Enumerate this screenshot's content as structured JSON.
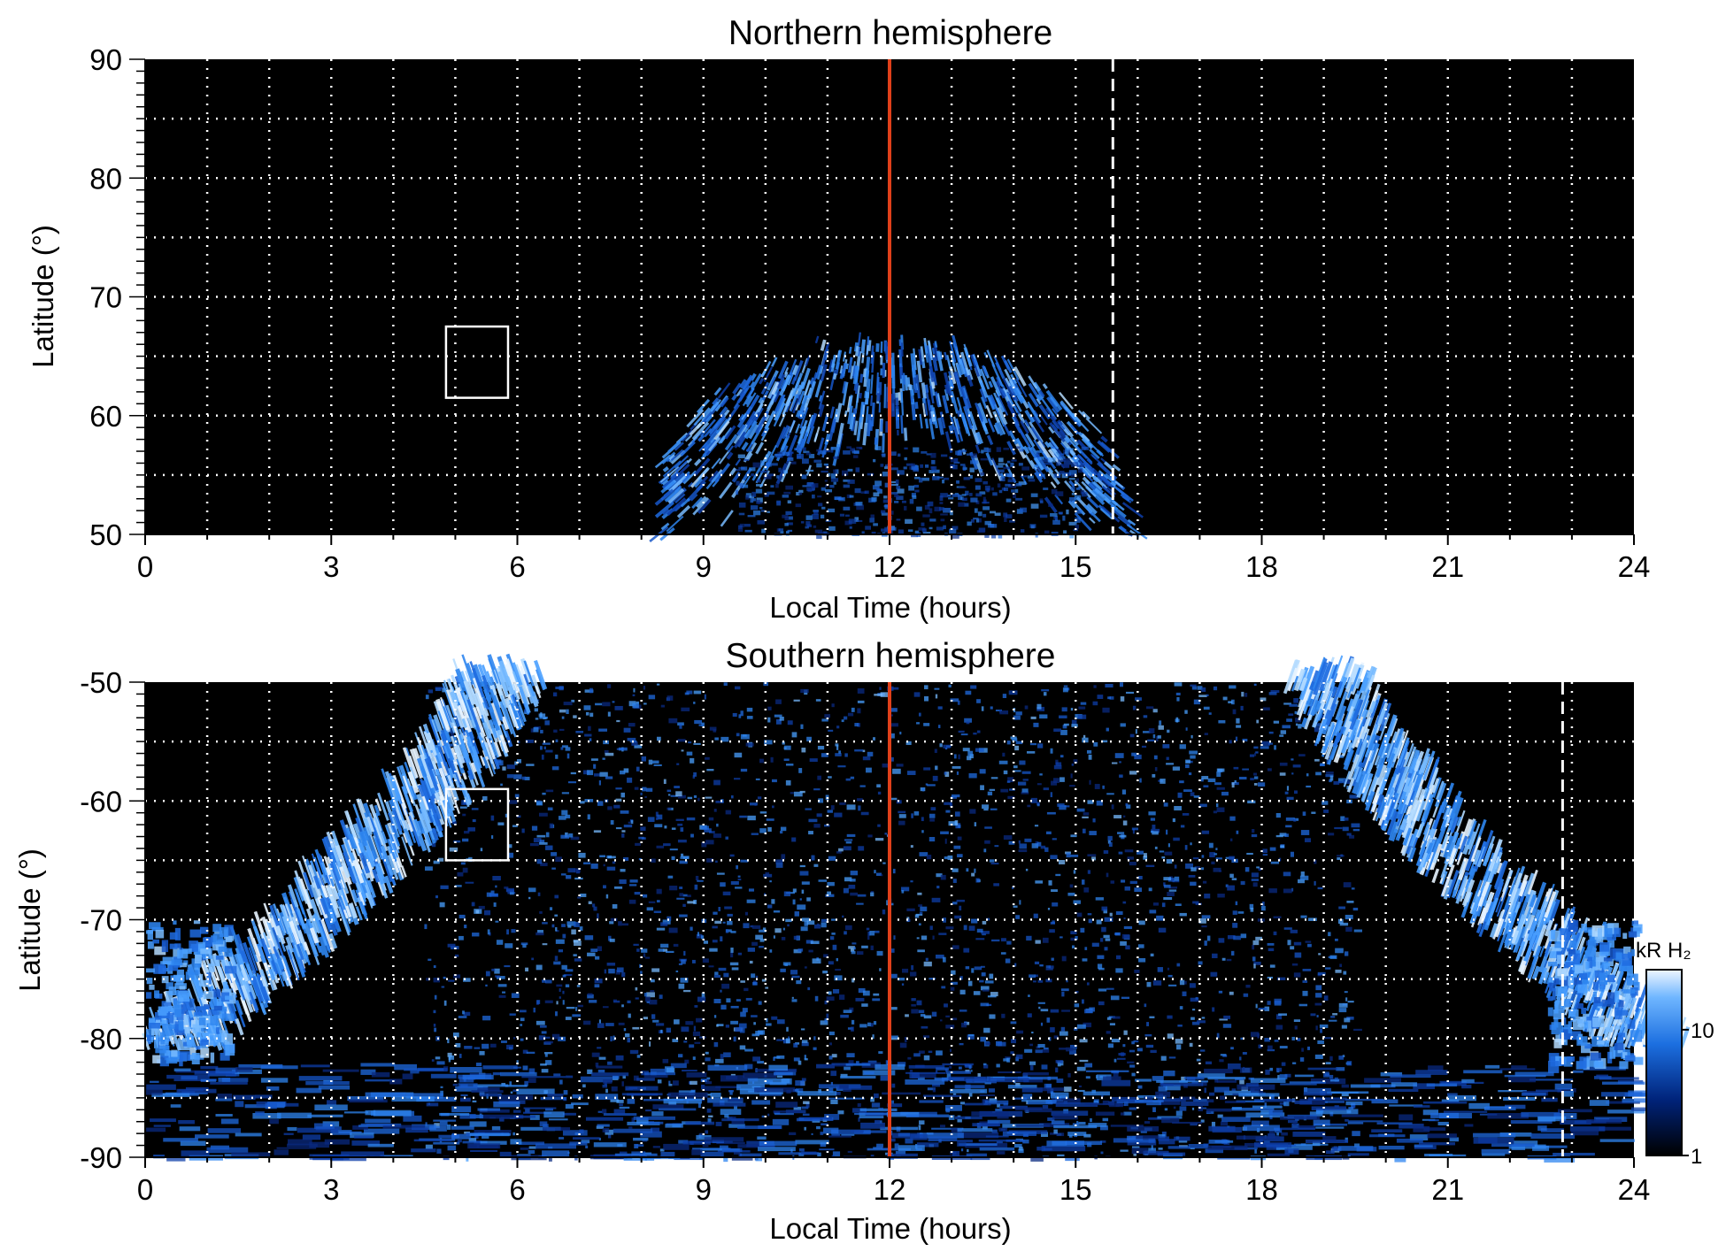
{
  "chart_data": [
    {
      "type": "heatmap",
      "title": "Northern hemisphere",
      "xlabel": "Local Time (hours)",
      "ylabel": "Latitude (°)",
      "xlim": [
        0,
        24
      ],
      "ylim": [
        50,
        90
      ],
      "xticks": [
        "0",
        "3",
        "6",
        "9",
        "12",
        "15",
        "18",
        "21",
        "24"
      ],
      "yticks": [
        "90",
        "80",
        "70",
        "60",
        "50"
      ],
      "grid": true,
      "background": "#000000",
      "markers": {
        "noon_line_lt": 12,
        "noon_line_color": "#e0401a",
        "dashed_line_lt": 15.6,
        "box": {
          "lt": [
            4.85,
            5.85
          ],
          "lat": [
            61.5,
            67.5
          ]
        }
      },
      "emission": {
        "description_values": [
          {
            "lt_range": [
              8.5,
              16.3
            ],
            "peak_lat": 62,
            "lat_max": 67.5
          }
        ]
      }
    },
    {
      "type": "heatmap",
      "title": "Southern hemisphere",
      "xlabel": "Local Time (hours)",
      "ylabel": "Latitude (°)",
      "xlim": [
        0,
        24
      ],
      "ylim": [
        -90,
        -50
      ],
      "xticks": [
        "0",
        "3",
        "6",
        "9",
        "12",
        "15",
        "18",
        "21",
        "24"
      ],
      "yticks": [
        "-50",
        "-60",
        "-70",
        "-80",
        "-90"
      ],
      "grid": true,
      "background": "#000000",
      "markers": {
        "noon_line_lt": 12,
        "noon_line_color": "#e0401a",
        "dashed_line_lt": 22.85,
        "box": {
          "lt": [
            4.85,
            5.85
          ],
          "lat": [
            -59,
            -65
          ]
        }
      },
      "colorbar": {
        "label": "kR H₂",
        "ticks": [
          "10",
          "1"
        ],
        "range": [
          1,
          30
        ],
        "scale": "log",
        "colors": [
          "#000000",
          "#0033aa",
          "#2b7de9",
          "#e6f2ff"
        ]
      }
    }
  ]
}
